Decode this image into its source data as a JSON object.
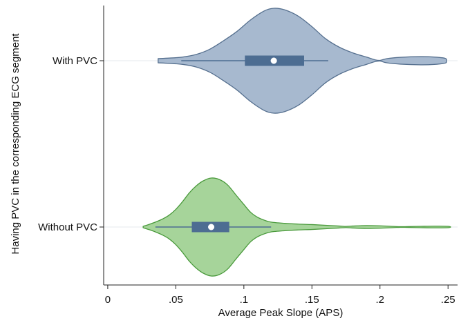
{
  "chart_data": {
    "type": "violin",
    "title": "",
    "xlabel": "Average Peak Slope (APS)",
    "ylabel": "Having PVC in the corresponding ECG segment",
    "xlim": [
      -0.003,
      0.257
    ],
    "xticks": [
      {
        "value": 0,
        "label": "0"
      },
      {
        "value": 0.05,
        "label": ".05"
      },
      {
        "value": 0.1,
        "label": ".1"
      },
      {
        "value": 0.15,
        "label": ".15"
      },
      {
        "value": 0.2,
        "label": ".2"
      },
      {
        "value": 0.25,
        "label": ".25"
      }
    ],
    "grid": "horizontal lines at each category",
    "legend": "none",
    "categories": [
      "With PVC",
      "Without PVC"
    ],
    "series": [
      {
        "category": "With PVC",
        "fill": "#a7b9cf",
        "stroke": "#56708f",
        "box_color": "#4d6d92",
        "median": 0.122,
        "q1": 0.101,
        "q3": 0.144,
        "whisker_low": 0.054,
        "whisker_high": 0.162,
        "density": [
          [
            0.037,
            0.04
          ],
          [
            0.045,
            0.05
          ],
          [
            0.055,
            0.07
          ],
          [
            0.065,
            0.12
          ],
          [
            0.075,
            0.22
          ],
          [
            0.085,
            0.38
          ],
          [
            0.095,
            0.56
          ],
          [
            0.105,
            0.78
          ],
          [
            0.115,
            0.95
          ],
          [
            0.122,
            1.0
          ],
          [
            0.13,
            0.97
          ],
          [
            0.14,
            0.85
          ],
          [
            0.15,
            0.65
          ],
          [
            0.16,
            0.42
          ],
          [
            0.17,
            0.26
          ],
          [
            0.18,
            0.15
          ],
          [
            0.19,
            0.07
          ],
          [
            0.196,
            0.02
          ],
          [
            0.2,
            0.006
          ],
          [
            0.205,
            0.04
          ],
          [
            0.215,
            0.065
          ],
          [
            0.23,
            0.078
          ],
          [
            0.24,
            0.07
          ],
          [
            0.248,
            0.045
          ],
          [
            0.249,
            0.0
          ]
        ]
      },
      {
        "category": "Without PVC",
        "fill": "#a6d49a",
        "stroke": "#4a9a3c",
        "box_color": "#4d6d92",
        "median": 0.076,
        "q1": 0.062,
        "q3": 0.089,
        "whisker_low": 0.035,
        "whisker_high": 0.12,
        "density": [
          [
            0.026,
            0.015
          ],
          [
            0.03,
            0.05
          ],
          [
            0.035,
            0.1
          ],
          [
            0.04,
            0.16
          ],
          [
            0.045,
            0.24
          ],
          [
            0.05,
            0.36
          ],
          [
            0.055,
            0.52
          ],
          [
            0.06,
            0.7
          ],
          [
            0.065,
            0.84
          ],
          [
            0.07,
            0.94
          ],
          [
            0.076,
            1.0
          ],
          [
            0.082,
            0.97
          ],
          [
            0.088,
            0.86
          ],
          [
            0.094,
            0.66
          ],
          [
            0.1,
            0.46
          ],
          [
            0.105,
            0.3
          ],
          [
            0.11,
            0.2
          ],
          [
            0.115,
            0.14
          ],
          [
            0.12,
            0.1
          ],
          [
            0.13,
            0.075
          ],
          [
            0.14,
            0.06
          ],
          [
            0.15,
            0.05
          ],
          [
            0.16,
            0.035
          ],
          [
            0.17,
            0.02
          ],
          [
            0.175,
            0.012
          ],
          [
            0.18,
            0.02
          ],
          [
            0.19,
            0.03
          ],
          [
            0.2,
            0.025
          ],
          [
            0.21,
            0.012
          ],
          [
            0.215,
            0.006
          ],
          [
            0.22,
            0.008
          ],
          [
            0.23,
            0.014
          ],
          [
            0.24,
            0.018
          ],
          [
            0.25,
            0.014
          ],
          [
            0.252,
            0.0
          ]
        ]
      }
    ]
  }
}
